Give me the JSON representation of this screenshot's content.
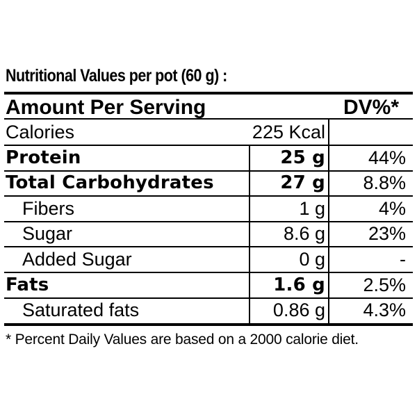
{
  "title": "Nutritional Values per pot (60 g) :",
  "header": {
    "amount_per_serving": "Amount Per Serving",
    "dv": "DV%*"
  },
  "rows": [
    {
      "name": "Calories",
      "amount": "225 Kcal",
      "dv": "",
      "bold": false,
      "indent": false
    },
    {
      "name": "Protein",
      "amount": "25 g",
      "dv": "44%",
      "bold": true,
      "indent": false
    },
    {
      "name": "Total Carbohydrates",
      "amount": "27 g",
      "dv": "8.8%",
      "bold": true,
      "indent": false
    },
    {
      "name": "Fibers",
      "amount": "1 g",
      "dv": "4%",
      "bold": false,
      "indent": true
    },
    {
      "name": "Sugar",
      "amount": "8.6 g",
      "dv": "23%",
      "bold": false,
      "indent": true
    },
    {
      "name": "Added Sugar",
      "amount": "0 g",
      "dv": "-",
      "bold": false,
      "indent": true
    },
    {
      "name": "Fats",
      "amount": "1.6 g",
      "dv": "2.5%",
      "bold": true,
      "indent": false
    },
    {
      "name": "Saturated fats",
      "amount": "0.86 g",
      "dv": "4.3%",
      "bold": false,
      "indent": true
    }
  ],
  "footnote": "* Percent Daily Values are based on a 2000 calorie diet."
}
